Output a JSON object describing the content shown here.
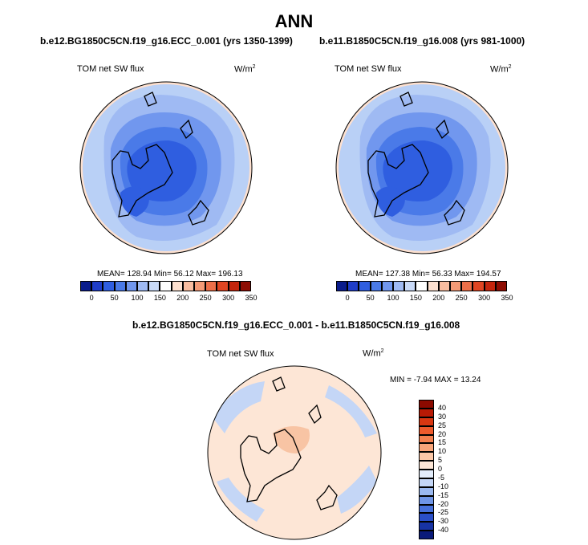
{
  "page_title": "ANN",
  "panels": [
    {
      "case_name": "b.e12.BG1850C5CN.f19_g16.ECC_0.001 (yrs 1350-1399)",
      "variable": "TOM net SW flux",
      "units": "W/m",
      "units_exp": "2",
      "stats": "MEAN= 128.94  Min=  56.12  Max= 196.13"
    },
    {
      "case_name": "b.e11.B1850C5CN.f19_g16.008 (yrs 981-1000)",
      "variable": "TOM net SW flux",
      "units": "W/m",
      "units_exp": "2",
      "stats": "MEAN= 127.38  Min=  56.33  Max= 194.57"
    }
  ],
  "abs_colorbar": {
    "colors": [
      "#0a1c8c",
      "#1f3dc9",
      "#2f5ee0",
      "#4a7ae8",
      "#7197ee",
      "#9fbaf3",
      "#c9daf8",
      "#ffffff",
      "#fde0cf",
      "#f9bda0",
      "#f49a76",
      "#ed6f49",
      "#e04522",
      "#c4250d",
      "#8e0d03"
    ],
    "labels": [
      "0",
      "50",
      "100",
      "150",
      "200",
      "250",
      "300",
      "350"
    ]
  },
  "diff_panel": {
    "title": "b.e12.BG1850C5CN.f19_g16.ECC_0.001 - b.e11.B1850C5CN.f19_g16.008",
    "variable": "TOM net SW flux",
    "units": "W/m",
    "units_exp": "2",
    "stats": "MIN =  -7.94  MAX =  13.24"
  },
  "diff_colorbar": {
    "colors": [
      "#8b0a00",
      "#b81a05",
      "#d93712",
      "#ee5a2c",
      "#f4804f",
      "#f8a57a",
      "#fbc7a7",
      "#fde6d6",
      "#e3edfb",
      "#c4d6f6",
      "#9ab8ef",
      "#6f95e6",
      "#4771db",
      "#2a4fc8",
      "#1733a4",
      "#0a1a7a"
    ],
    "labels": [
      "40",
      "30",
      "25",
      "20",
      "15",
      "10",
      "5",
      "0",
      "-5",
      "-10",
      "-15",
      "-20",
      "-25",
      "-30",
      "-40"
    ]
  },
  "colors": {
    "polar_cap": "#2a5ad8",
    "mid_blue": "#3f6fe3",
    "light_blue": "#b9d0f6",
    "ocean_edge": "#fde0cf",
    "diff_background": "#fde6d6",
    "diff_blue": "#c4d6f6",
    "diff_warm": "#f8c4a4"
  }
}
